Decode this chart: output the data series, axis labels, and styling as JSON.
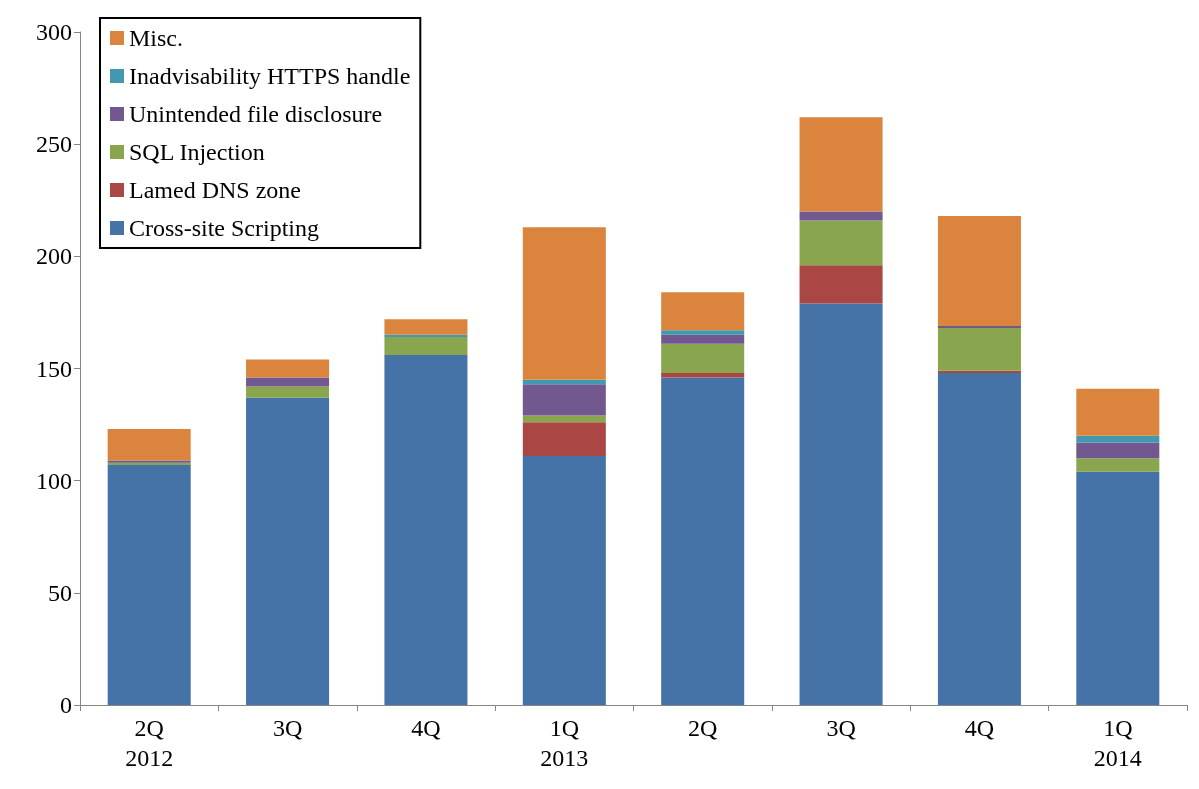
{
  "chart_data": {
    "type": "bar",
    "stacked": true,
    "categories": [
      "2Q\n2012",
      "3Q",
      "4Q",
      "1Q\n2013",
      "2Q",
      "3Q",
      "4Q",
      "1Q\n2014"
    ],
    "series": [
      {
        "name": "Cross-site Scripting",
        "color": "#4572a7",
        "values": [
          107,
          137,
          156,
          111,
          146,
          179,
          148,
          104
        ]
      },
      {
        "name": "Lamed DNS zone",
        "color": "#aa4643",
        "values": [
          0,
          0,
          0,
          15,
          2,
          17,
          1,
          0
        ]
      },
      {
        "name": "SQL Injection",
        "color": "#89a54e",
        "values": [
          1,
          5,
          8,
          3,
          13,
          20,
          19,
          6
        ]
      },
      {
        "name": "Unintended file disclosure",
        "color": "#71588f",
        "values": [
          1,
          4,
          0,
          14,
          4,
          4,
          1,
          7
        ]
      },
      {
        "name": "Inadvisability HTTPS handle",
        "color": "#4198af",
        "values": [
          0,
          0,
          1,
          2,
          2,
          0,
          0,
          3
        ]
      },
      {
        "name": "Misc.",
        "color": "#db843d",
        "values": [
          14,
          8,
          7,
          68,
          17,
          42,
          49,
          21
        ]
      }
    ],
    "ylim": [
      0,
      300
    ],
    "yticks": [
      0,
      50,
      100,
      150,
      200,
      250,
      300
    ],
    "grid": false,
    "legend": "top left"
  }
}
